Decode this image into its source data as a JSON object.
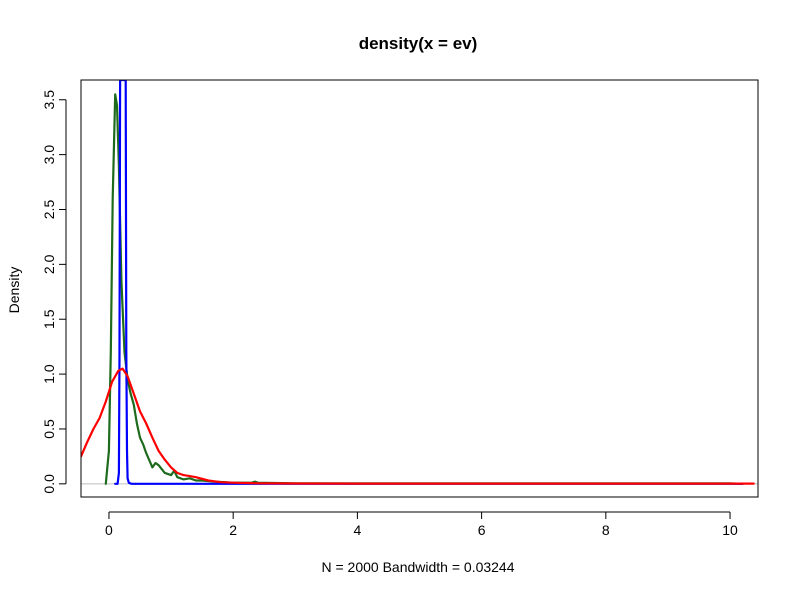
{
  "chart_data": {
    "type": "line",
    "title": "density(x = ev)",
    "xlabel": "N = 2000   Bandwidth = 0.03244",
    "ylabel": "Density",
    "xlim": [
      -0.45,
      10.45
    ],
    "ylim": [
      -0.12,
      3.68
    ],
    "x_ticks": [
      0,
      2,
      4,
      6,
      8,
      10
    ],
    "y_ticks": [
      0.0,
      0.5,
      1.0,
      1.5,
      2.0,
      2.5,
      3.0,
      3.5
    ],
    "x_tick_labels": [
      "0",
      "2",
      "4",
      "6",
      "8",
      "10"
    ],
    "y_tick_labels": [
      "0.0",
      "0.5",
      "1.0",
      "1.5",
      "2.0",
      "2.5",
      "3.0",
      "3.5"
    ],
    "grid": false,
    "legend": "none",
    "series": [
      {
        "color": "#1E6B1E",
        "x": [
          -0.05,
          0.0,
          0.03,
          0.06,
          0.1,
          0.13,
          0.16,
          0.2,
          0.25,
          0.3,
          0.35,
          0.4,
          0.45,
          0.5,
          0.55,
          0.6,
          0.7,
          0.75,
          0.8,
          0.9,
          1.0,
          1.05,
          1.1,
          1.2,
          1.3,
          1.4,
          1.5,
          1.7,
          2.0,
          2.3,
          2.35,
          2.4,
          3.0,
          4.0,
          5.0,
          6.0,
          7.0,
          8.0,
          9.0,
          10.0,
          10.2
        ],
        "y": [
          0.0,
          0.3,
          1.2,
          2.6,
          3.55,
          3.45,
          2.9,
          1.85,
          1.2,
          0.95,
          0.82,
          0.72,
          0.55,
          0.42,
          0.36,
          0.28,
          0.15,
          0.19,
          0.17,
          0.1,
          0.08,
          0.12,
          0.06,
          0.04,
          0.05,
          0.03,
          0.03,
          0.02,
          0.01,
          0.01,
          0.02,
          0.01,
          0.005,
          0.005,
          0.005,
          0.005,
          0.005,
          0.005,
          0.005,
          0.005,
          0.0
        ]
      },
      {
        "color": "#0000FF",
        "x": [
          0.1,
          0.14,
          0.16,
          0.17,
          0.18,
          0.19,
          0.2,
          0.21,
          0.22,
          0.23,
          0.24,
          0.25,
          0.26,
          0.27,
          0.28,
          0.29,
          0.3,
          0.32,
          0.36,
          0.5,
          1.0,
          2.0,
          3.0,
          4.0,
          5.0,
          6.0,
          7.0,
          8.0,
          9.0,
          10.0,
          10.2
        ],
        "y": [
          0.0,
          0.0,
          0.1,
          1.2,
          3.68,
          3.68,
          3.68,
          3.68,
          3.68,
          3.68,
          3.68,
          3.68,
          3.68,
          3.68,
          1.2,
          0.3,
          0.05,
          0.01,
          0.0,
          0.0,
          0.0,
          0.0,
          0.0,
          0.0,
          0.0,
          0.0,
          0.0,
          0.0,
          0.0,
          0.0,
          0.0
        ]
      },
      {
        "color": "#FF0000",
        "x": [
          -0.45,
          -0.35,
          -0.25,
          -0.15,
          -0.05,
          0.05,
          0.15,
          0.22,
          0.3,
          0.4,
          0.5,
          0.6,
          0.7,
          0.8,
          0.9,
          1.0,
          1.1,
          1.2,
          1.3,
          1.4,
          1.6,
          1.8,
          2.0,
          2.4,
          3.0,
          4.0,
          5.0,
          6.0,
          7.0,
          8.0,
          9.0,
          10.0,
          10.38
        ],
        "y": [
          0.25,
          0.38,
          0.5,
          0.6,
          0.75,
          0.93,
          1.03,
          1.05,
          0.98,
          0.82,
          0.66,
          0.55,
          0.42,
          0.3,
          0.22,
          0.15,
          0.1,
          0.08,
          0.07,
          0.06,
          0.03,
          0.015,
          0.01,
          0.005,
          0.003,
          0.002,
          0.002,
          0.002,
          0.002,
          0.002,
          0.002,
          0.002,
          0.002
        ]
      }
    ]
  }
}
